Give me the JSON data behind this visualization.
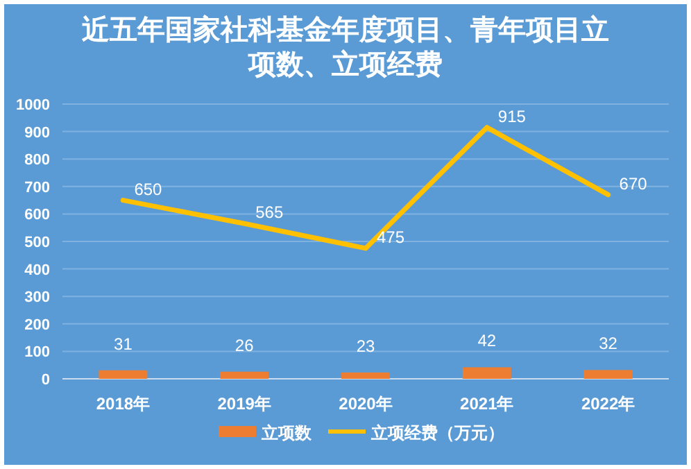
{
  "chart_data": {
    "type": "bar",
    "title": "近五年国家社科基金年度项目、青年项目立项数、立项经费",
    "categories": [
      "2018年",
      "2019年",
      "2020年",
      "2021年",
      "2022年"
    ],
    "series": [
      {
        "name": "立项数",
        "color": "#ed7d31",
        "values": [
          31,
          26,
          23,
          42,
          32
        ]
      },
      {
        "name": "立项经费（万元）",
        "type": "line",
        "color": "#ffc000",
        "values": [
          650,
          565,
          475,
          915,
          670
        ]
      }
    ],
    "ylim": [
      0,
      1000
    ],
    "yticks": [
      0,
      100,
      200,
      300,
      400,
      500,
      600,
      700,
      800,
      900,
      1000
    ],
    "grid": "y",
    "legend": "bottom",
    "data_labels": true
  }
}
